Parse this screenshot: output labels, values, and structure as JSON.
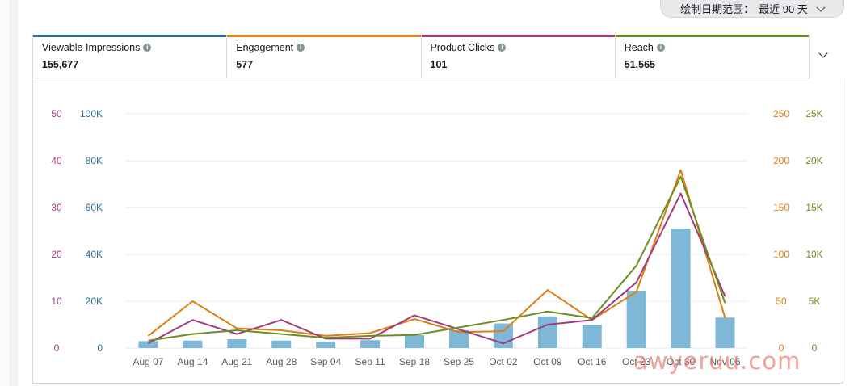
{
  "date_range": {
    "label": "绘制日期范围：",
    "value": "最近 90 天"
  },
  "metrics": [
    {
      "label": "Viewable Impressions",
      "value": "155,677",
      "color": "#2e6f95"
    },
    {
      "label": "Engagement",
      "value": "577",
      "color": "#dd7e12"
    },
    {
      "label": "Product Clicks",
      "value": "101",
      "color": "#a23a7e"
    },
    {
      "label": "Reach",
      "value": "51,565",
      "color": "#6b8e23"
    }
  ],
  "watermark": "awyeruu.com",
  "chart_data": {
    "type": "bar",
    "categories": [
      "Aug 07",
      "Aug 14",
      "Aug 21",
      "Aug 28",
      "Sep 04",
      "Sep 11",
      "Sep 18",
      "Sep 25",
      "Oct 02",
      "Oct 09",
      "Oct 16",
      "Oct 23",
      "Oct 30",
      "Nov 06"
    ],
    "axes": {
      "left_outer": {
        "ticks": [
          "0",
          "10",
          "20",
          "30",
          "40",
          "50"
        ],
        "max": 50,
        "color": "#a23a7e"
      },
      "left_inner": {
        "ticks": [
          "0",
          "20K",
          "40K",
          "60K",
          "80K",
          "100K"
        ],
        "max": 100000,
        "color": "#2e6f95"
      },
      "right_inner": {
        "ticks": [
          "0",
          "50",
          "100",
          "150",
          "200",
          "250"
        ],
        "max": 250,
        "color": "#dd7e12"
      },
      "right_outer": {
        "ticks": [
          "0",
          "5K",
          "10K",
          "15K",
          "20K",
          "25K"
        ],
        "max": 25000,
        "color": "#6b8e23"
      }
    },
    "grid": true,
    "series": [
      {
        "name": "Viewable Impressions",
        "type": "bar",
        "axis": "left_inner",
        "color": "#7fb8d6",
        "values": [
          3000,
          3200,
          3800,
          3200,
          2800,
          3400,
          5600,
          7600,
          10500,
          13500,
          10000,
          24500,
          51000,
          13000
        ]
      },
      {
        "name": "Engagement",
        "type": "line",
        "axis": "right_inner",
        "color": "#dd7e12",
        "values": [
          13,
          50,
          21,
          19,
          13,
          16,
          31,
          17,
          18,
          62,
          30,
          60,
          190,
          32
        ]
      },
      {
        "name": "Product Clicks",
        "type": "line",
        "axis": "left_outer",
        "color": "#a23a7e",
        "values": [
          1,
          6,
          3,
          6,
          2,
          2,
          7,
          4,
          1,
          5,
          6,
          14,
          33,
          11
        ]
      },
      {
        "name": "Reach",
        "type": "line",
        "axis": "right_outer",
        "color": "#6b8e23",
        "values": [
          800,
          1500,
          1900,
          1500,
          1100,
          1300,
          1400,
          2200,
          3000,
          3900,
          3200,
          8800,
          18300,
          4800
        ]
      }
    ]
  }
}
